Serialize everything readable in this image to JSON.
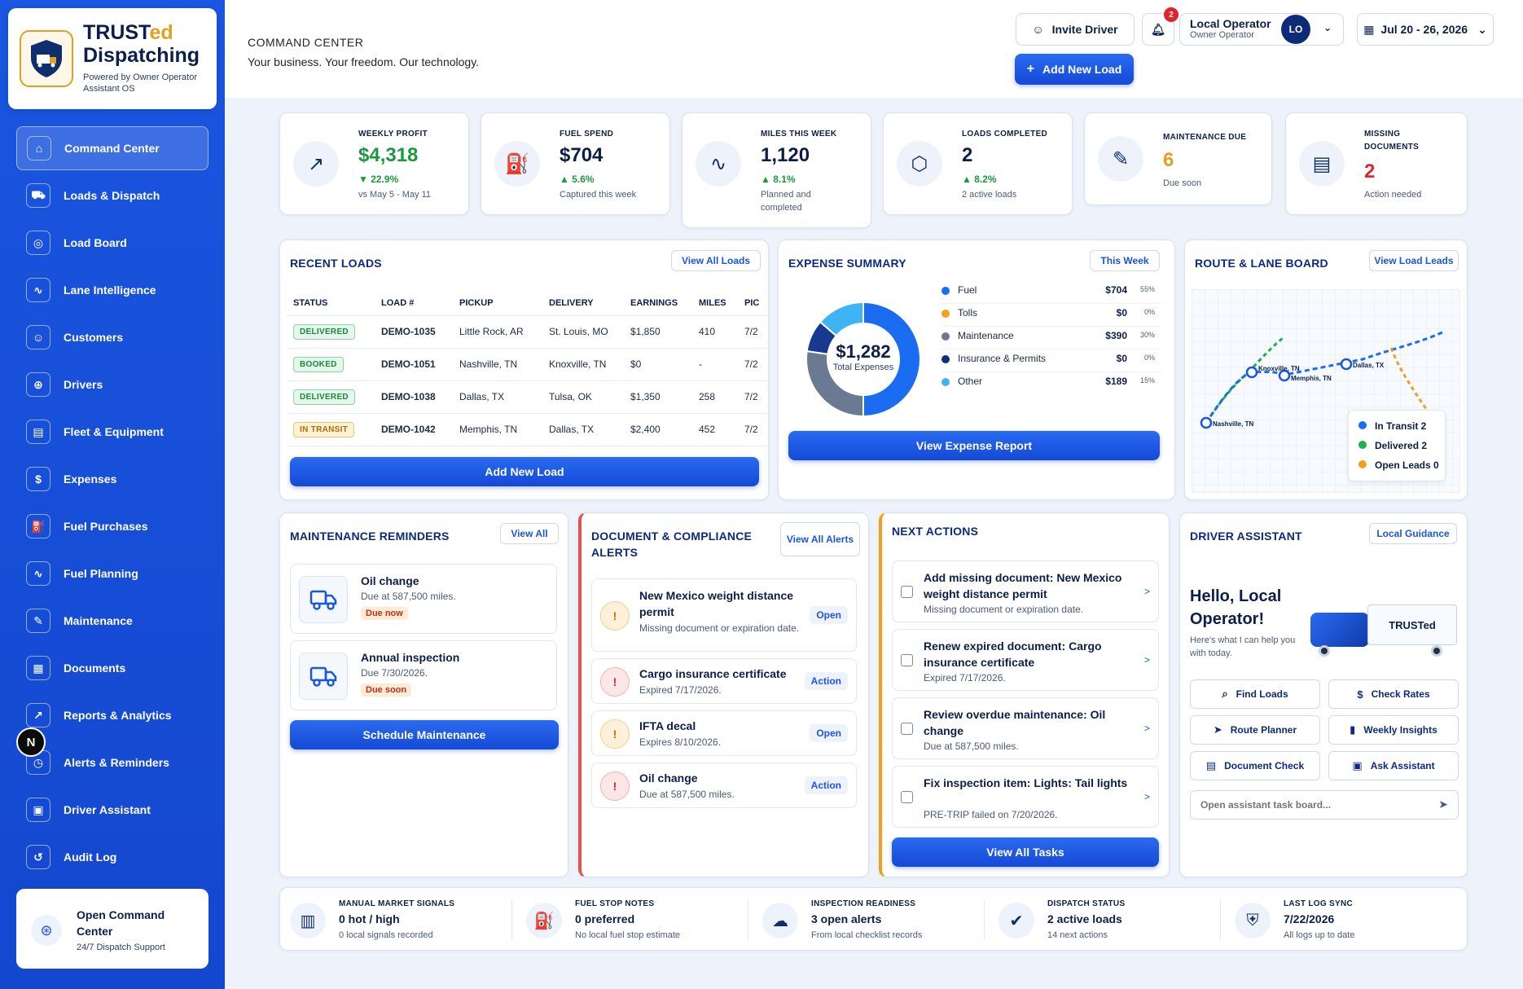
{
  "brand": {
    "title_main": "TRUST",
    "title_ed": "ed",
    "title_line2": "Dispatching",
    "subtitle": "Powered by Owner Operator Assistant OS"
  },
  "sidebar": {
    "items": [
      {
        "label": "Command Center",
        "icon": "home-icon",
        "glyph": "⌂",
        "active": true
      },
      {
        "label": "Loads & Dispatch",
        "icon": "truck-icon",
        "glyph": "⛟"
      },
      {
        "label": "Load Board",
        "icon": "target-icon",
        "glyph": "◎"
      },
      {
        "label": "Lane Intelligence",
        "icon": "route-icon",
        "glyph": "∿"
      },
      {
        "label": "Customers",
        "icon": "users-icon",
        "glyph": "☺"
      },
      {
        "label": "Drivers",
        "icon": "steering-wheel-icon",
        "glyph": "⊕"
      },
      {
        "label": "Fleet & Equipment",
        "icon": "clipboard-icon",
        "glyph": "▤"
      },
      {
        "label": "Expenses",
        "icon": "receipt-icon",
        "glyph": "$"
      },
      {
        "label": "Fuel Purchases",
        "icon": "fuel-icon",
        "glyph": "⛽"
      },
      {
        "label": "Fuel Planning",
        "icon": "route-plan-icon",
        "glyph": "∿"
      },
      {
        "label": "Maintenance",
        "icon": "wrench-icon",
        "glyph": "✎"
      },
      {
        "label": "Documents",
        "icon": "document-icon",
        "glyph": "▦"
      },
      {
        "label": "Reports & Analytics",
        "icon": "chart-icon",
        "glyph": "↗"
      },
      {
        "label": "Alerts & Reminders",
        "icon": "clock-alert-icon",
        "glyph": "◷"
      },
      {
        "label": "Driver Assistant",
        "icon": "robot-icon",
        "glyph": "▣"
      },
      {
        "label": "Audit Log",
        "icon": "history-icon",
        "glyph": "↺"
      }
    ],
    "support": {
      "title": "Open Command Center",
      "subtitle": "24/7 Dispatch Support"
    },
    "bubble": "N"
  },
  "header": {
    "title": "COMMAND CENTER",
    "subtitle": "Your business. Your freedom. Our technology.",
    "invite_label": "Invite Driver",
    "notif_count": "2",
    "user_name": "Local Operator",
    "user_role": "Owner Operator",
    "avatar_initials": "LO",
    "date_range": "Jul 20 - 26, 2026",
    "add_load_label": "Add New Load"
  },
  "kpis": [
    {
      "label": "WEEKLY PROFIT",
      "value": "$4,318",
      "delta": "▼ 22.9%",
      "note": "vs May 5 - May 11",
      "value_color": "#1a9a3c"
    },
    {
      "label": "FUEL SPEND",
      "value": "$704",
      "delta": "▲ 5.6%",
      "note": "Captured this week"
    },
    {
      "label": "MILES THIS WEEK",
      "value": "1,120",
      "delta": "▲ 8.1%",
      "note": "Planned and completed"
    },
    {
      "label": "LOADS COMPLETED",
      "value": "2",
      "delta": "▲ 8.2%",
      "note": "2 active loads"
    },
    {
      "label": "MAINTENANCE DUE",
      "value": "6",
      "note": "Due soon",
      "value_color": "#e0a020"
    },
    {
      "label": "MISSING DOCUMENTS",
      "value": "2",
      "note": "Action needed",
      "value_color": "#d9282e"
    }
  ],
  "recent_loads": {
    "title": "RECENT LOADS",
    "view_all": "View All Loads",
    "columns": [
      "STATUS",
      "LOAD #",
      "PICKUP",
      "DELIVERY",
      "EARNINGS",
      "MILES",
      "PIC"
    ],
    "rows": [
      {
        "status": "DELIVERED",
        "kind": "delivered",
        "id": "DEMO-1035",
        "pickup": "Little Rock, AR",
        "delivery": "St. Louis, MO",
        "earnings": "$1,850",
        "miles": "410",
        "pic": "7/2"
      },
      {
        "status": "BOOKED",
        "kind": "booked",
        "id": "DEMO-1051",
        "pickup": "Nashville, TN",
        "delivery": "Knoxville, TN",
        "earnings": "$0",
        "miles": "-",
        "pic": "7/2"
      },
      {
        "status": "DELIVERED",
        "kind": "delivered",
        "id": "DEMO-1038",
        "pickup": "Dallas, TX",
        "delivery": "Tulsa, OK",
        "earnings": "$1,350",
        "miles": "258",
        "pic": "7/2"
      },
      {
        "status": "IN TRANSIT",
        "kind": "transit",
        "id": "DEMO-1042",
        "pickup": "Memphis, TN",
        "delivery": "Dallas, TX",
        "earnings": "$2,400",
        "miles": "452",
        "pic": "7/2"
      }
    ],
    "add_label": "Add New Load"
  },
  "expense": {
    "title": "EXPENSE SUMMARY",
    "period": "This Week",
    "total": "$1,282",
    "total_label": "Total Expenses",
    "button": "View Expense Report",
    "items": [
      {
        "name": "Fuel",
        "amount": "$704",
        "pct": "55%",
        "share": 55,
        "color": "#1a6cf0"
      },
      {
        "name": "Tolls",
        "amount": "$0",
        "pct": "0%",
        "share": 0,
        "color": "#f2a01c"
      },
      {
        "name": "Maintenance",
        "amount": "$390",
        "pct": "30%",
        "share": 30,
        "color": "#6b7a92"
      },
      {
        "name": "Insurance & Permits",
        "amount": "$0",
        "pct": "0%",
        "share": 0,
        "color": "#0f2e80"
      },
      {
        "name": "Other",
        "amount": "$189",
        "pct": "15%",
        "share": 15,
        "color": "#3fb4f4"
      }
    ],
    "ring_colors": [
      "#1a6cf0",
      "#6b7a92",
      "#173a8f",
      "#3fb4f4"
    ]
  },
  "route_board": {
    "title": "ROUTE & LANE BOARD",
    "button": "View Load Leads",
    "cities": [
      "Nashville, TN",
      "Knoxville, TN",
      "Memphis, TN",
      "Dallas, TX"
    ],
    "legend": [
      {
        "label": "In Transit 2",
        "color": "#1a6cf0"
      },
      {
        "label": "Delivered 2",
        "color": "#22b04a"
      },
      {
        "label": "Open Leads 0",
        "color": "#f2a01c"
      }
    ]
  },
  "maintenance": {
    "title": "MAINTENANCE REMINDERS",
    "view_all": "View All",
    "items": [
      {
        "title": "Oil change",
        "sub": "Due at 587,500 miles.",
        "tag": "Due now"
      },
      {
        "title": "Annual inspection",
        "sub": "Due 7/30/2026.",
        "tag": "Due soon"
      }
    ],
    "button": "Schedule Maintenance"
  },
  "compliance": {
    "title": "DOCUMENT & COMPLIANCE ALERTS",
    "view_all": "View All Alerts",
    "items": [
      {
        "title": "New Mexico weight distance permit",
        "sub": "Missing document or expiration date.",
        "action": "Open",
        "level": "warn"
      },
      {
        "title": "Cargo insurance certificate",
        "sub": "Expired 7/17/2026.",
        "action": "Action",
        "level": "err"
      },
      {
        "title": "IFTA decal",
        "sub": "Expires 8/10/2026.",
        "action": "Open",
        "level": "warn"
      },
      {
        "title": "Oil change",
        "sub": "Due at 587,500 miles.",
        "action": "Action",
        "level": "err"
      }
    ]
  },
  "next_actions": {
    "title": "NEXT ACTIONS",
    "items": [
      {
        "title": "Add missing document: New Mexico weight distance permit",
        "sub": "Missing document or expiration date."
      },
      {
        "title": "Renew expired document: Cargo insurance certificate",
        "sub": "Expired 7/17/2026."
      },
      {
        "title": "Review overdue maintenance: Oil change",
        "sub": "Due at 587,500 miles."
      },
      {
        "title": "Fix inspection item: Lights: Tail lights",
        "sub": "PRE-TRIP failed on 7/20/2026."
      }
    ],
    "button": "View All Tasks"
  },
  "assistant": {
    "title": "DRIVER ASSISTANT",
    "button": "Local Guidance",
    "greeting": "Hello, Local Operator!",
    "sub": "Here's what I can help you with today.",
    "truck_label": "TRUSTed",
    "actions": [
      {
        "label": "Find Loads",
        "glyph": "⌕",
        "icon": "search-icon"
      },
      {
        "label": "Check Rates",
        "glyph": "$",
        "icon": "dollar-icon"
      },
      {
        "label": "Route Planner",
        "glyph": "➤",
        "icon": "navigation-icon"
      },
      {
        "label": "Weekly Insights",
        "glyph": "▮",
        "icon": "bar-chart-icon"
      },
      {
        "label": "Document Check",
        "glyph": "▤",
        "icon": "document-icon"
      },
      {
        "label": "Ask Assistant",
        "glyph": "▣",
        "icon": "robot-icon"
      }
    ],
    "input_placeholder": "Open assistant task board..."
  },
  "bottom_stats": [
    {
      "label": "MANUAL MARKET SIGNALS",
      "value": "0 hot / high",
      "note": "0 local signals recorded",
      "icon": "bar-signal-icon",
      "glyph": "▥"
    },
    {
      "label": "FUEL STOP NOTES",
      "value": "0 preferred",
      "note": "No local fuel stop estimate",
      "icon": "fuel-icon",
      "glyph": "⛽"
    },
    {
      "label": "INSPECTION READINESS",
      "value": "3 open alerts",
      "note": "From local checklist records",
      "icon": "cloud-alert-icon",
      "glyph": "☁"
    },
    {
      "label": "DISPATCH STATUS",
      "value": "2 active loads",
      "note": "14 next actions",
      "icon": "clipboard-check-icon",
      "glyph": "✔"
    },
    {
      "label": "LAST LOG SYNC",
      "value": "7/22/2026",
      "note": "All logs up to date",
      "icon": "shield-check-icon",
      "glyph": "⛨"
    }
  ]
}
